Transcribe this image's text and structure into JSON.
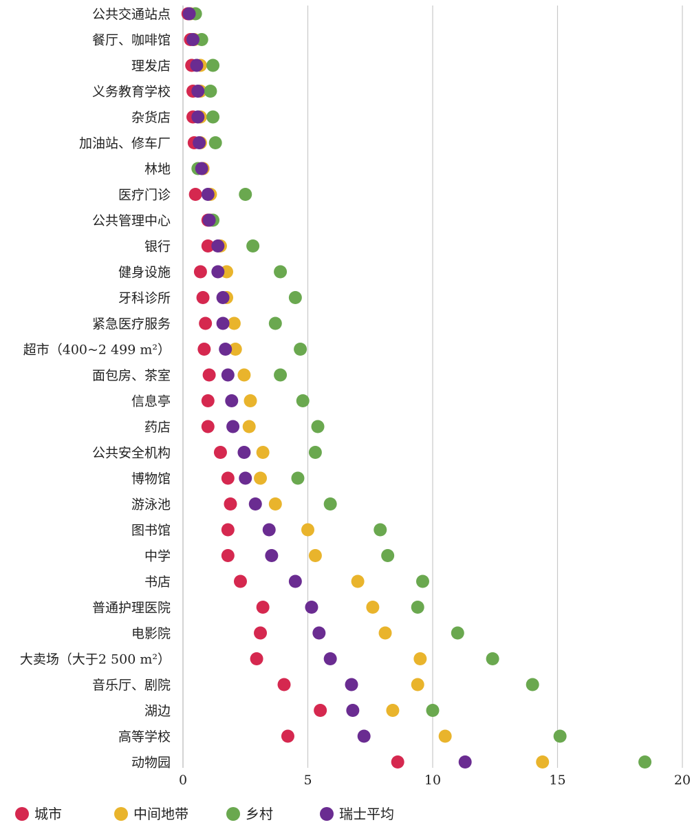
{
  "chart_data": {
    "type": "scatter",
    "orientation": "horizontal-dot-plot",
    "categories": [
      "公共交通站点",
      "餐厅、咖啡馆",
      "理发店",
      "义务教育学校",
      "杂货店",
      "加油站、修车厂",
      "林地",
      "医疗门诊",
      "公共管理中心",
      "银行",
      "健身设施",
      "牙科诊所",
      "紧急医疗服务",
      "超市（400~2 499 m²）",
      "面包房、茶室",
      "信息亭",
      "药店",
      "公共安全机构",
      "博物馆",
      "游泳池",
      "图书馆",
      "中学",
      "书店",
      "普通护理医院",
      "电影院",
      "大卖场（大于2 500 m²）",
      "音乐厅、剧院",
      "湖边",
      "高等学校",
      "动物园"
    ],
    "series": [
      {
        "name": "城市",
        "color": "#d5284f",
        "values": [
          0.2,
          0.3,
          0.35,
          0.4,
          0.4,
          0.45,
          0.8,
          0.5,
          1.0,
          1.0,
          0.7,
          0.8,
          0.9,
          0.85,
          1.05,
          1.0,
          1.0,
          1.5,
          1.8,
          1.9,
          1.8,
          1.8,
          2.3,
          3.2,
          3.1,
          2.95,
          4.05,
          5.5,
          4.2,
          8.6
        ]
      },
      {
        "name": "中间地带",
        "color": "#e9b42c",
        "values": [
          0.3,
          0.45,
          0.7,
          0.7,
          0.7,
          0.7,
          0.8,
          1.1,
          1.1,
          1.5,
          1.75,
          1.75,
          2.05,
          2.1,
          2.45,
          2.7,
          2.65,
          3.2,
          3.1,
          3.7,
          5.0,
          5.3,
          7.0,
          7.6,
          8.1,
          9.5,
          9.4,
          8.4,
          10.5,
          14.4
        ]
      },
      {
        "name": "乡村",
        "color": "#6aa84f",
        "values": [
          0.5,
          0.75,
          1.2,
          1.1,
          1.2,
          1.3,
          0.6,
          2.5,
          1.2,
          2.8,
          3.9,
          4.5,
          3.7,
          4.7,
          3.9,
          4.8,
          5.4,
          5.3,
          4.6,
          5.9,
          7.9,
          8.2,
          9.6,
          9.4,
          11.0,
          12.4,
          14.0,
          10.0,
          15.1,
          18.5
        ]
      },
      {
        "name": "瑞士平均",
        "color": "#6a2c91",
        "values": [
          0.25,
          0.4,
          0.55,
          0.6,
          0.6,
          0.65,
          0.75,
          1.0,
          1.05,
          1.4,
          1.4,
          1.6,
          1.6,
          1.7,
          1.8,
          1.95,
          2.0,
          2.45,
          2.5,
          2.9,
          3.45,
          3.55,
          4.5,
          5.15,
          5.45,
          5.9,
          6.75,
          6.8,
          7.25,
          11.3
        ]
      }
    ],
    "x_ticks": [
      "0",
      "5",
      "10",
      "15",
      "20"
    ],
    "xlim": [
      0,
      20
    ],
    "grid": "vertical",
    "legend_position": "bottom-left",
    "title": "",
    "xlabel": "",
    "ylabel": ""
  }
}
